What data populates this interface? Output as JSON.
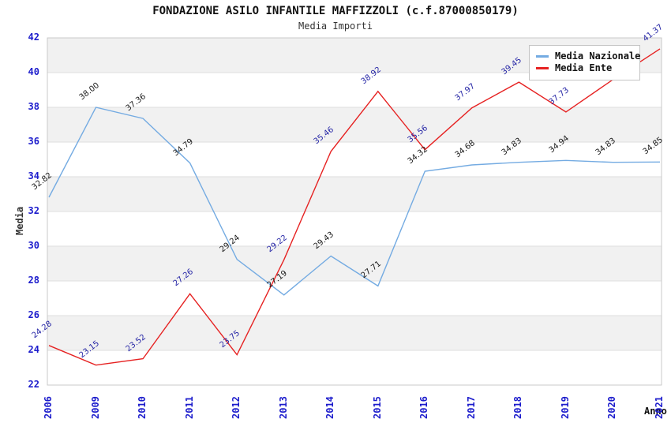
{
  "header": {
    "title": "FONDAZIONE ASILO INFANTILE MAFFIZZOLI (c.f.87000850179)",
    "subtitle": "Media Importi"
  },
  "chart_data": {
    "type": "line",
    "x": [
      "2006",
      "2009",
      "2010",
      "2011",
      "2012",
      "2013",
      "2014",
      "2015",
      "2016",
      "2017",
      "2018",
      "2019",
      "2020",
      "2021"
    ],
    "series": [
      {
        "name": "Media Nazionale",
        "color": "#74abe2",
        "label_color": "#1a1a1a",
        "values": [
          32.82,
          38.0,
          37.36,
          34.79,
          29.24,
          27.19,
          29.43,
          27.71,
          34.32,
          34.68,
          34.83,
          34.94,
          34.83,
          34.85
        ],
        "labels": [
          "32.82",
          "38.00",
          "37.36",
          "34.79",
          "29.24",
          "27.19",
          "29.43",
          "27.71",
          "34.32",
          "34.68",
          "34.83",
          "34.94",
          "34.83",
          "34.85"
        ]
      },
      {
        "name": "Media Ente",
        "color": "#e62222",
        "label_color": "#2626a6",
        "values": [
          24.28,
          23.15,
          23.52,
          27.26,
          23.75,
          29.22,
          35.46,
          38.92,
          35.56,
          37.97,
          39.45,
          37.73,
          39.6,
          41.37
        ],
        "labels": [
          "24.28",
          "23.15",
          "23.52",
          "27.26",
          "23.75",
          "29.22",
          "35.46",
          "38.92",
          "35.56",
          "37.97",
          "39.45",
          "37.73",
          "",
          "41.37"
        ]
      }
    ],
    "title": "FONDAZIONE ASILO INFANTILE MAFFIZZOLI (c.f.87000850179)",
    "subtitle": "Media Importi",
    "xlabel": "Anno",
    "ylabel": "Media",
    "ylim": [
      22,
      42
    ],
    "ytick_step": 2,
    "yticks": [
      "22",
      "24",
      "26",
      "28",
      "30",
      "32",
      "34",
      "36",
      "38",
      "40",
      "42"
    ],
    "grid": true,
    "legend_position": "top-right",
    "style": {
      "axis_tick_color": "#1c1ccc",
      "band_color": "#f1f1f1",
      "grid_color": "#dedede",
      "border_color": "#c9c9c9"
    }
  }
}
